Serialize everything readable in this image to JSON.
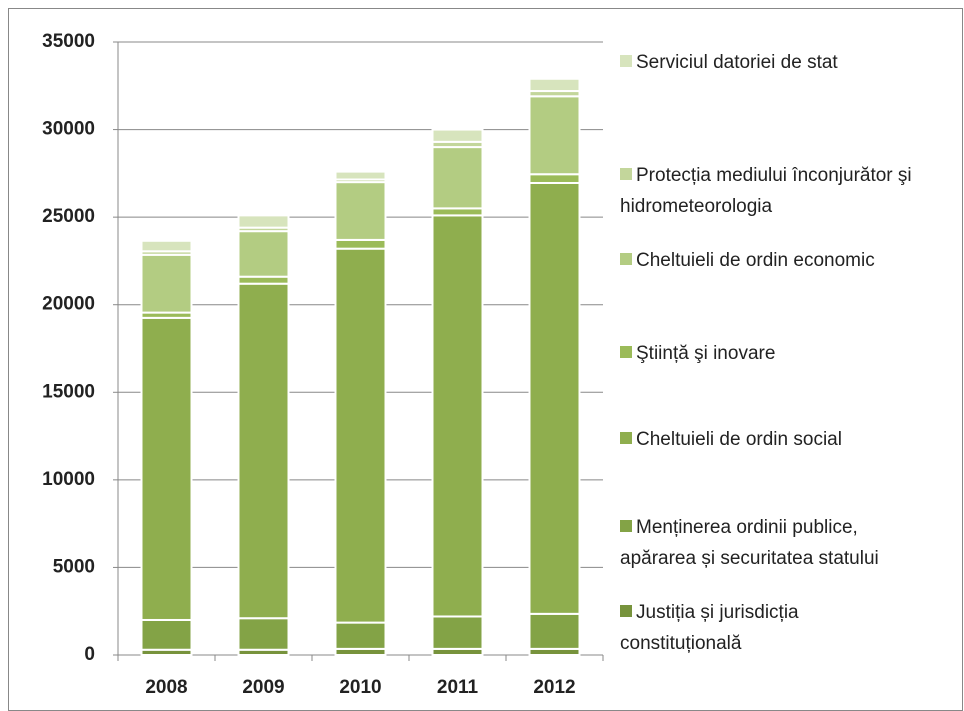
{
  "chart_data": {
    "type": "stacked-bar",
    "categories": [
      "2008",
      "2009",
      "2010",
      "2011",
      "2012"
    ],
    "series": [
      {
        "name": "Justiția și jurisdicția constituțională",
        "color": "#77933c",
        "values": [
          300,
          300,
          350,
          350,
          350
        ]
      },
      {
        "name": "Menținerea ordinii publice, apărarea și securitatea statului",
        "color": "#83a346",
        "values": [
          1700,
          1800,
          1500,
          1850,
          2000
        ]
      },
      {
        "name": "Cheltuieli de ordin social",
        "color": "#8fae4e",
        "values": [
          17250,
          19100,
          21350,
          22900,
          24600
        ]
      },
      {
        "name": "Ştiință şi inovare",
        "color": "#9bbb59",
        "values": [
          300,
          400,
          500,
          400,
          500
        ]
      },
      {
        "name": "Cheltuieli de ordin economic",
        "color": "#b3cc82",
        "values": [
          3300,
          2600,
          3300,
          3500,
          4450
        ]
      },
      {
        "name": "Protecția mediului înconjurător şi hidrometeorologia",
        "color": "#c3d69b",
        "values": [
          200,
          200,
          150,
          300,
          300
        ]
      },
      {
        "name": "Serviciul datoriei de stat",
        "color": "#d7e4bd",
        "values": [
          600,
          700,
          450,
          700,
          700
        ]
      }
    ],
    "ylim": [
      0,
      35000
    ],
    "yticks": [
      0,
      5000,
      10000,
      15000,
      20000,
      25000,
      30000,
      35000
    ],
    "grid": true,
    "legend": "right"
  }
}
